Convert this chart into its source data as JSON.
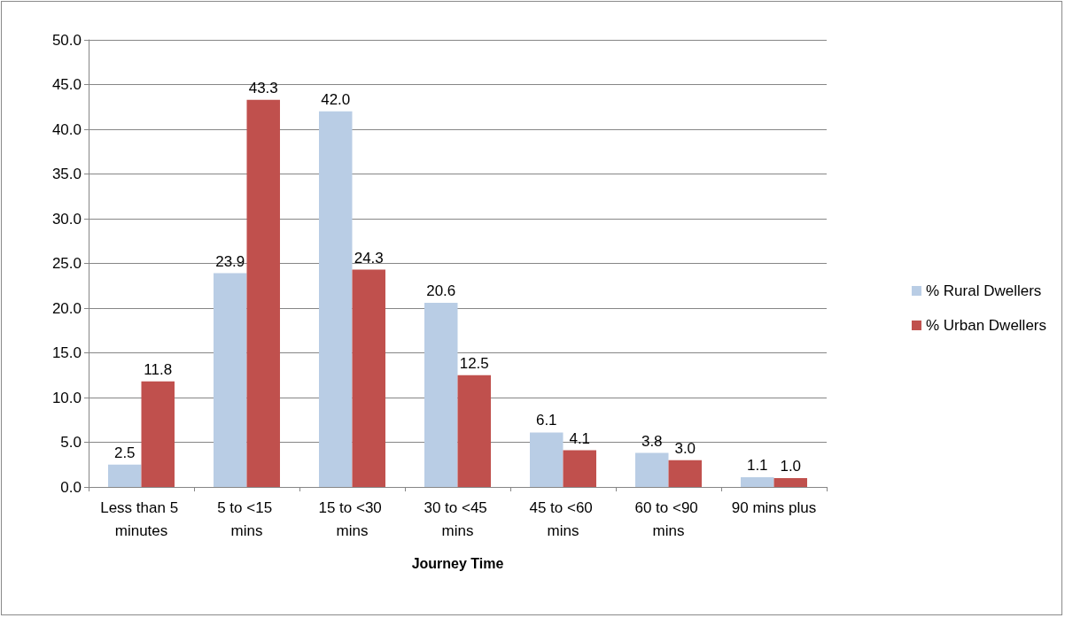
{
  "chart_data": {
    "type": "bar",
    "xlabel": "Journey Time",
    "categories": [
      "Less than 5 minutes",
      "5 to <15 mins",
      "15 to <30 mins",
      "30 to <45 mins",
      "45 to <60 mins",
      "60 to <90 mins",
      "90 mins plus"
    ],
    "series": [
      {
        "name": "% Rural Dwellers",
        "color": "#b9cde5",
        "values": [
          2.5,
          23.9,
          42.0,
          20.6,
          6.1,
          3.8,
          1.1
        ],
        "value_labels": [
          "2.5",
          "23.9",
          "42.0",
          "20.6",
          "6.1",
          "3.8",
          "1.1"
        ]
      },
      {
        "name": "% Urban Dwellers",
        "color": "#c0504d",
        "values": [
          11.8,
          43.3,
          24.3,
          12.5,
          4.1,
          3.0,
          1.0
        ],
        "value_labels": [
          "11.8",
          "43.3",
          "24.3",
          "12.5",
          "4.1",
          "3.0",
          "1.0"
        ]
      }
    ],
    "ylim": [
      0,
      50
    ],
    "yticks": [
      {
        "value": 0,
        "label": "0.0"
      },
      {
        "value": 5,
        "label": "5.0"
      },
      {
        "value": 10,
        "label": "10.0"
      },
      {
        "value": 15,
        "label": "15.0"
      },
      {
        "value": 20,
        "label": "20.0"
      },
      {
        "value": 25,
        "label": "25.0"
      },
      {
        "value": 30,
        "label": "30.0"
      },
      {
        "value": 35,
        "label": "35.0"
      },
      {
        "value": 40,
        "label": "40.0"
      },
      {
        "value": 45,
        "label": "45.0"
      },
      {
        "value": 50,
        "label": "50.0"
      }
    ],
    "grid": "y",
    "legend": "right"
  }
}
